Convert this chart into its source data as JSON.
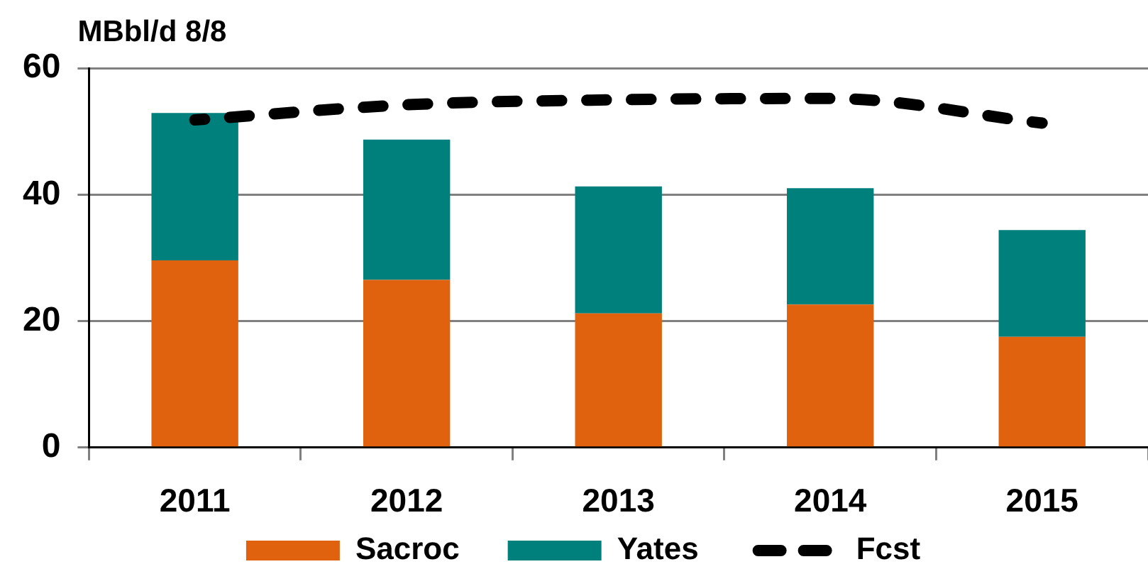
{
  "chart_data": {
    "type": "bar",
    "ylabel": "MBbl/d 8/8",
    "categories": [
      "2011",
      "2012",
      "2013",
      "2014",
      "2015"
    ],
    "series": [
      {
        "name": "Sacroc",
        "color": "#e0620f",
        "values": [
          29.6,
          26.5,
          21.2,
          22.6,
          17.5
        ]
      },
      {
        "name": "Yates",
        "color": "#00807c",
        "values": [
          23.3,
          22.2,
          20.1,
          18.4,
          16.9
        ]
      },
      {
        "name": "Fcst",
        "type": "line",
        "color": "#000000",
        "values": [
          51.8,
          54.2,
          55.0,
          55.2,
          51.3
        ]
      }
    ],
    "stacked": true,
    "ylim": [
      0,
      60
    ],
    "yticks": [
      0,
      20,
      40,
      60
    ],
    "grid": "y",
    "legend": "bottom",
    "marker": "none",
    "line_style": "dashed"
  }
}
